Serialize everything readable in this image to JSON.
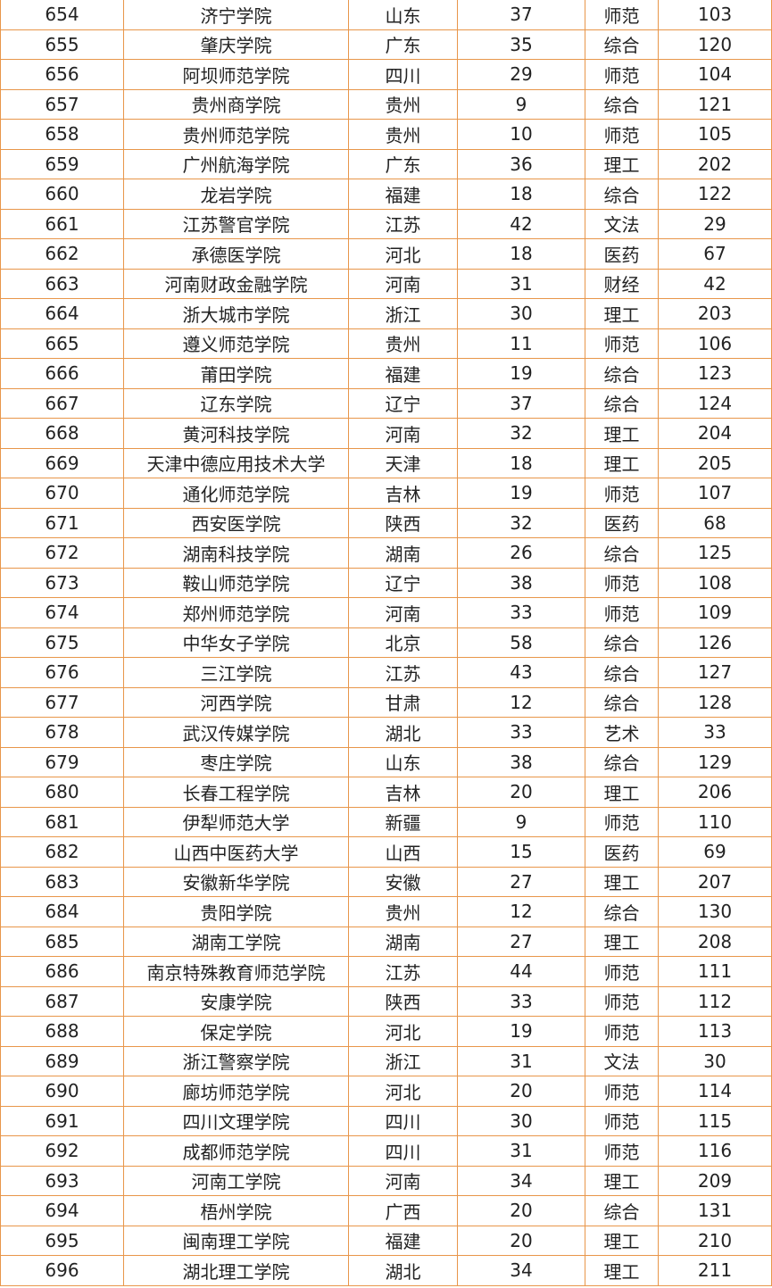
{
  "table": {
    "rows": [
      [
        654,
        "济宁学院",
        "山东",
        37,
        "师范",
        103
      ],
      [
        655,
        "肇庆学院",
        "广东",
        35,
        "综合",
        120
      ],
      [
        656,
        "阿坝师范学院",
        "四川",
        29,
        "师范",
        104
      ],
      [
        657,
        "贵州商学院",
        "贵州",
        9,
        "综合",
        121
      ],
      [
        658,
        "贵州师范学院",
        "贵州",
        10,
        "师范",
        105
      ],
      [
        659,
        "广州航海学院",
        "广东",
        36,
        "理工",
        202
      ],
      [
        660,
        "龙岩学院",
        "福建",
        18,
        "综合",
        122
      ],
      [
        661,
        "江苏警官学院",
        "江苏",
        42,
        "文法",
        29
      ],
      [
        662,
        "承德医学院",
        "河北",
        18,
        "医药",
        67
      ],
      [
        663,
        "河南财政金融学院",
        "河南",
        31,
        "财经",
        42
      ],
      [
        664,
        "浙大城市学院",
        "浙江",
        30,
        "理工",
        203
      ],
      [
        665,
        "遵义师范学院",
        "贵州",
        11,
        "师范",
        106
      ],
      [
        666,
        "莆田学院",
        "福建",
        19,
        "综合",
        123
      ],
      [
        667,
        "辽东学院",
        "辽宁",
        37,
        "综合",
        124
      ],
      [
        668,
        "黄河科技学院",
        "河南",
        32,
        "理工",
        204
      ],
      [
        669,
        "天津中德应用技术大学",
        "天津",
        18,
        "理工",
        205
      ],
      [
        670,
        "通化师范学院",
        "吉林",
        19,
        "师范",
        107
      ],
      [
        671,
        "西安医学院",
        "陕西",
        32,
        "医药",
        68
      ],
      [
        672,
        "湖南科技学院",
        "湖南",
        26,
        "综合",
        125
      ],
      [
        673,
        "鞍山师范学院",
        "辽宁",
        38,
        "师范",
        108
      ],
      [
        674,
        "郑州师范学院",
        "河南",
        33,
        "师范",
        109
      ],
      [
        675,
        "中华女子学院",
        "北京",
        58,
        "综合",
        126
      ],
      [
        676,
        "三江学院",
        "江苏",
        43,
        "综合",
        127
      ],
      [
        677,
        "河西学院",
        "甘肃",
        12,
        "综合",
        128
      ],
      [
        678,
        "武汉传媒学院",
        "湖北",
        33,
        "艺术",
        33
      ],
      [
        679,
        "枣庄学院",
        "山东",
        38,
        "综合",
        129
      ],
      [
        680,
        "长春工程学院",
        "吉林",
        20,
        "理工",
        206
      ],
      [
        681,
        "伊犁师范大学",
        "新疆",
        9,
        "师范",
        110
      ],
      [
        682,
        "山西中医药大学",
        "山西",
        15,
        "医药",
        69
      ],
      [
        683,
        "安徽新华学院",
        "安徽",
        27,
        "理工",
        207
      ],
      [
        684,
        "贵阳学院",
        "贵州",
        12,
        "综合",
        130
      ],
      [
        685,
        "湖南工学院",
        "湖南",
        27,
        "理工",
        208
      ],
      [
        686,
        "南京特殊教育师范学院",
        "江苏",
        44,
        "师范",
        111
      ],
      [
        687,
        "安康学院",
        "陕西",
        33,
        "师范",
        112
      ],
      [
        688,
        "保定学院",
        "河北",
        19,
        "师范",
        113
      ],
      [
        689,
        "浙江警察学院",
        "浙江",
        31,
        "文法",
        30
      ],
      [
        690,
        "廊坊师范学院",
        "河北",
        20,
        "师范",
        114
      ],
      [
        691,
        "四川文理学院",
        "四川",
        30,
        "师范",
        115
      ],
      [
        692,
        "成都师范学院",
        "四川",
        31,
        "师范",
        116
      ],
      [
        693,
        "河南工学院",
        "河南",
        34,
        "理工",
        209
      ],
      [
        694,
        "梧州学院",
        "广西",
        20,
        "综合",
        131
      ],
      [
        695,
        "闽南理工学院",
        "福建",
        20,
        "理工",
        210
      ],
      [
        696,
        "湖北理工学院",
        "湖北",
        34,
        "理工",
        211
      ]
    ]
  }
}
